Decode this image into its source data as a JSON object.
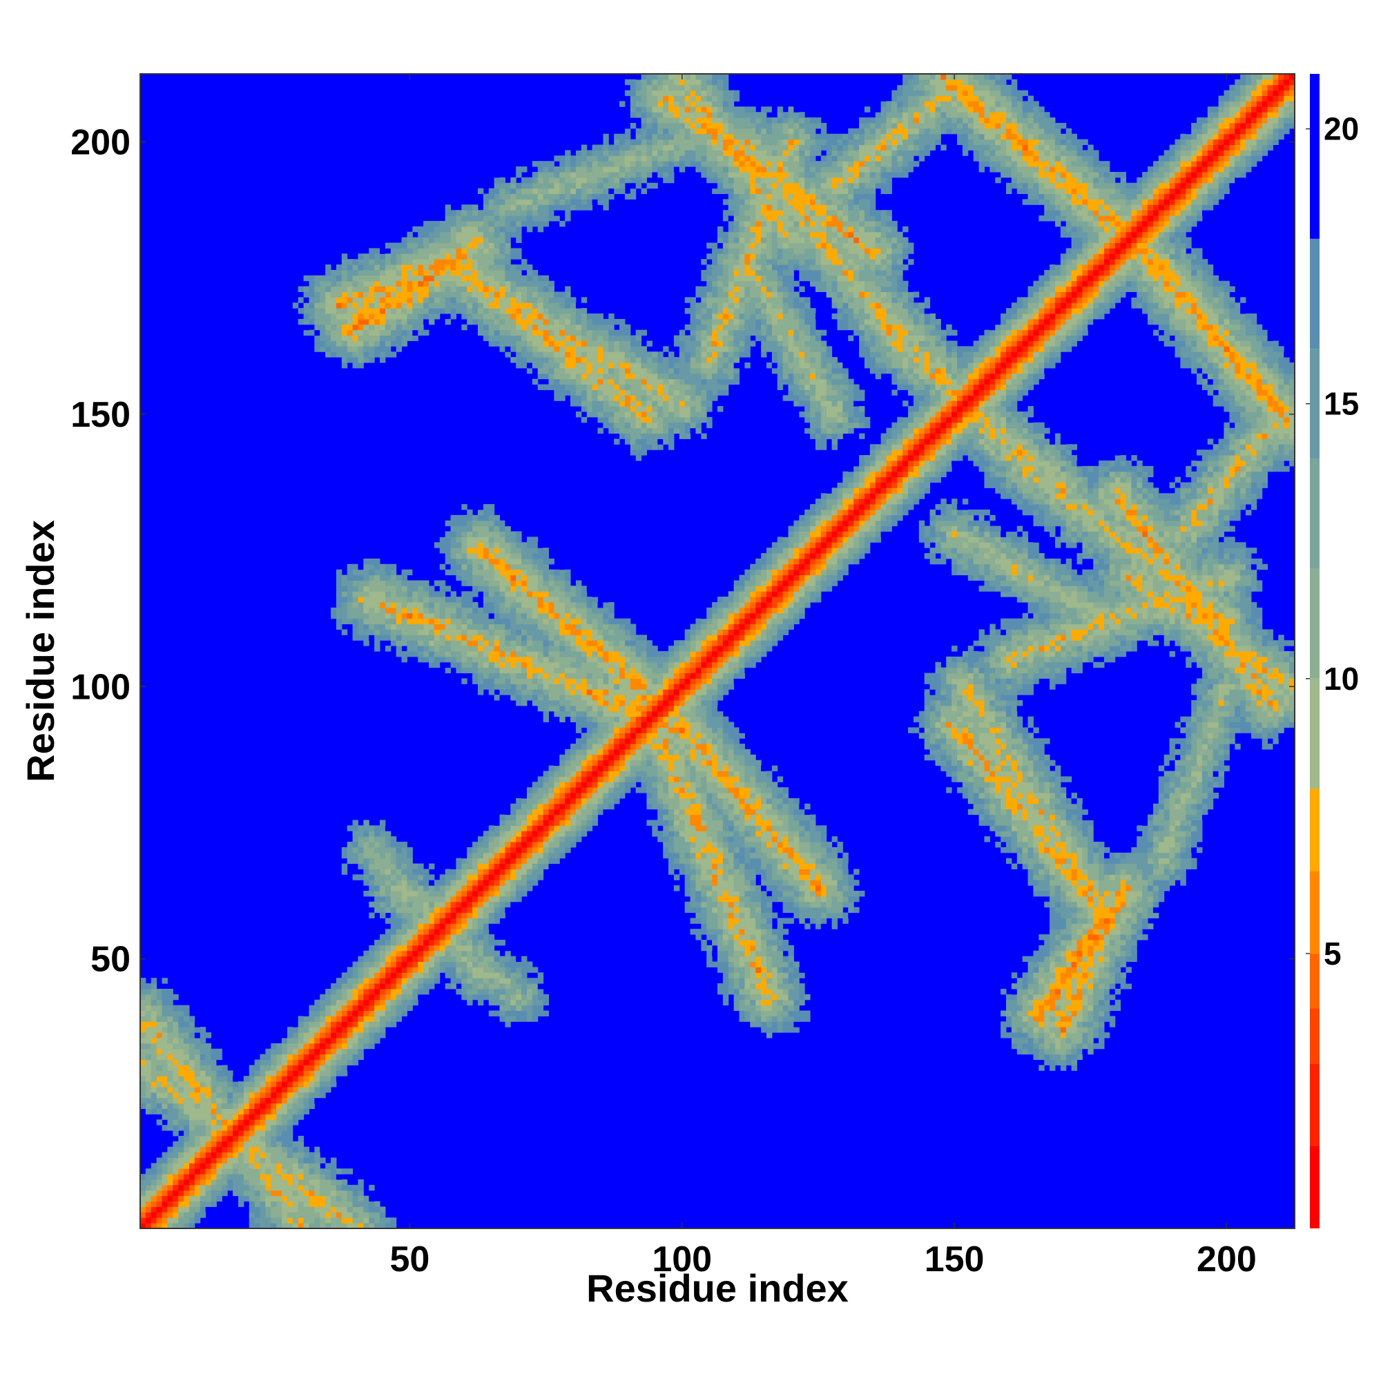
{
  "chart_data": {
    "type": "heatmap",
    "title": "",
    "xlabel": "Residue index",
    "ylabel": "Residue index",
    "n_residues": 212,
    "xlim": [
      0.5,
      212.5
    ],
    "ylim": [
      0.5,
      212.5
    ],
    "x_ticks": [
      50,
      100,
      150,
      200
    ],
    "y_ticks": [
      50,
      100,
      150,
      200
    ],
    "colorbar": {
      "ticks": [
        5,
        10,
        15,
        20
      ],
      "range": [
        0,
        21
      ],
      "palette": [
        "#ff0000",
        "#ff2200",
        "#ff4400",
        "#ff6600",
        "#ff8800",
        "#ffaa00",
        "#9fb88c",
        "#8cae92",
        "#79a59a",
        "#6899a6",
        "#5a8eb0",
        "#0000ff"
      ],
      "boundaries": [
        0,
        1.5,
        3,
        4,
        5,
        6.5,
        8,
        10,
        12,
        14,
        16,
        18,
        21
      ]
    },
    "contact_bands": [
      {
        "from": [
          1,
          30
        ],
        "to": [
          40,
          1
        ],
        "peak_distance": 7
      },
      {
        "from": [
          1,
          38
        ],
        "to": [
          14,
          20
        ],
        "peak_distance": 8
      },
      {
        "from": [
          47,
          63
        ],
        "to": [
          70,
          43
        ],
        "peak_distance": 9
      },
      {
        "from": [
          43,
          116
        ],
        "to": [
          100,
          92
        ],
        "peak_distance": 6
      },
      {
        "from": [
          100,
          92
        ],
        "to": [
          125,
          63
        ],
        "peak_distance": 6
      },
      {
        "from": [
          100,
          93
        ],
        "to": [
          126,
          63
        ],
        "peak_distance": 7
      },
      {
        "from": [
          37,
          170
        ],
        "to": [
          57,
          178
        ],
        "peak_distance": 6
      },
      {
        "from": [
          57,
          178
        ],
        "to": [
          100,
          152
        ],
        "peak_distance": 7
      },
      {
        "from": [
          97,
          208
        ],
        "to": [
          135,
          180
        ],
        "peak_distance": 6
      },
      {
        "from": [
          112,
          178
        ],
        "to": [
          128,
          150
        ],
        "peak_distance": 8
      },
      {
        "from": [
          128,
          192
        ],
        "to": [
          150,
          210
        ],
        "peak_distance": 7
      },
      {
        "from": [
          150,
          210
        ],
        "to": [
          182,
          183
        ],
        "peak_distance": 6
      },
      {
        "from": [
          136,
          170
        ],
        "to": [
          163,
          140
        ],
        "peak_distance": 7
      },
      {
        "from": [
          182,
          183
        ],
        "to": [
          212,
          148
        ],
        "peak_distance": 6
      },
      {
        "from": [
          163,
          140
        ],
        "to": [
          200,
          112
        ],
        "peak_distance": 7
      },
      {
        "from": [
          150,
          93
        ],
        "to": [
          176,
          60
        ],
        "peak_distance": 6
      },
      {
        "from": [
          160,
          105
        ],
        "to": [
          200,
          120
        ],
        "peak_distance": 7
      },
      {
        "from": [
          182,
          120
        ],
        "to": [
          212,
          100
        ],
        "peak_distance": 7
      },
      {
        "from": [
          166,
          40
        ],
        "to": [
          181,
          62
        ],
        "peak_distance": 5
      },
      {
        "from": [
          188,
          68
        ],
        "to": [
          200,
          100
        ],
        "peak_distance": 9
      }
    ]
  }
}
